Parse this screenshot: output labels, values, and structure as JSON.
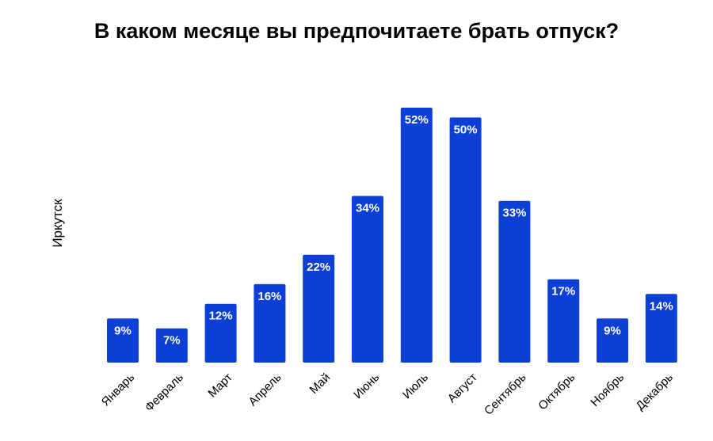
{
  "chart_data": {
    "type": "bar",
    "title": "В каком месяце вы предпочитаете брать отпуск?",
    "ylabel": "Иркутск",
    "xlabel": "",
    "categories": [
      "Январь",
      "Февраль",
      "Март",
      "Апрель",
      "Май",
      "Июнь",
      "Июль",
      "Август",
      "Сентябрь",
      "Октябрь",
      "Ноябрь",
      "Декабрь"
    ],
    "values": [
      9,
      7,
      12,
      16,
      22,
      34,
      52,
      50,
      33,
      17,
      9,
      14
    ],
    "value_suffix": "%",
    "ylim": [
      0,
      52
    ],
    "grid": false,
    "legend": "none",
    "bar_color": "#0b3fd6",
    "label_color": "#ffffff"
  }
}
